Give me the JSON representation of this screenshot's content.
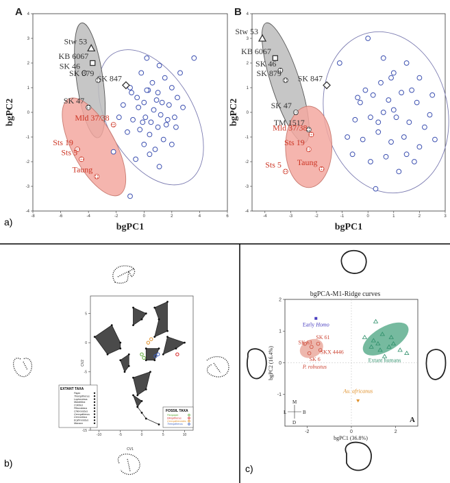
{
  "panel_labels": {
    "a": "a)",
    "b": "b)",
    "c": "c)"
  },
  "chart_data": [
    {
      "type": "scatter",
      "panel_letter": "A",
      "xlabel": "bgPC1",
      "ylabel": "bgPC2",
      "xlim": [
        -8,
        6
      ],
      "ylim": [
        -4,
        4
      ],
      "xticks": [
        "-8",
        "-6",
        "-4",
        "-2",
        "0",
        "2",
        "4",
        "6"
      ],
      "yticks": [
        "-4",
        "-3",
        "-2",
        "-1",
        "0",
        "1",
        "2",
        "3",
        "4"
      ],
      "labeled_points": [
        {
          "label": "Stw 53",
          "marker": "triangle",
          "x": -3.8,
          "y": 2.6,
          "color": "#333333"
        },
        {
          "label": "KB 6067",
          "marker": "square",
          "x": -3.7,
          "y": 2.0,
          "color": "#333333"
        },
        {
          "label": "SK 847",
          "marker": "diamond",
          "x": -1.3,
          "y": 1.1,
          "color": "#333333"
        },
        {
          "label": "SK 46",
          "marker": "gray-circle",
          "x": -4.3,
          "y": 1.6,
          "color": "#333333"
        },
        {
          "label": "SK 879",
          "marker": "gray-circle",
          "x": -3.3,
          "y": 1.3,
          "color": "#333333"
        },
        {
          "label": "SK 47",
          "marker": "gray-circle",
          "x": -4.0,
          "y": 0.2,
          "color": "#333333"
        },
        {
          "label": "Mld 37/38",
          "marker": "red-circle",
          "x": -2.2,
          "y": -0.5,
          "color": "#cc3322"
        },
        {
          "label": "Sts 19",
          "marker": "red-circle",
          "x": -4.8,
          "y": -1.5,
          "color": "#cc3322"
        },
        {
          "label": "Sts 5",
          "marker": "red-circle",
          "x": -4.5,
          "y": -1.9,
          "color": "#cc3322"
        },
        {
          "label": "Taung",
          "marker": "red-circle",
          "x": -3.4,
          "y": -2.6,
          "color": "#cc3322"
        }
      ],
      "human_points": [
        [
          -1.0,
          1.0
        ],
        [
          -0.5,
          0.6
        ],
        [
          0,
          0.4
        ],
        [
          0.3,
          0.9
        ],
        [
          0.6,
          1.2
        ],
        [
          1.0,
          0.8
        ],
        [
          1.5,
          1.4
        ],
        [
          2.0,
          1.0
        ],
        [
          0.2,
          2.2
        ],
        [
          1.1,
          1.9
        ],
        [
          -0.8,
          -0.3
        ],
        [
          0.1,
          -0.2
        ],
        [
          0.7,
          0.1
        ],
        [
          1.2,
          -0.1
        ],
        [
          1.8,
          0.3
        ],
        [
          2.4,
          0.6
        ],
        [
          -1.5,
          0.3
        ],
        [
          -0.3,
          -0.7
        ],
        [
          0.4,
          -0.9
        ],
        [
          1.0,
          -0.6
        ],
        [
          1.6,
          -0.5
        ],
        [
          2.2,
          -0.2
        ],
        [
          2.8,
          0.2
        ],
        [
          -1.8,
          -0.2
        ],
        [
          -1.2,
          -0.8
        ],
        [
          0.0,
          -1.3
        ],
        [
          0.8,
          -1.5
        ],
        [
          1.4,
          -1.1
        ],
        [
          2.0,
          -1.3
        ],
        [
          -2.2,
          -1.6
        ],
        [
          -0.6,
          -1.9
        ],
        [
          0.4,
          -1.7
        ],
        [
          1.1,
          -2.2
        ],
        [
          -1.0,
          -3.4
        ],
        [
          3.6,
          2.2
        ],
        [
          2.6,
          1.6
        ],
        [
          -0.2,
          1.6
        ],
        [
          0.9,
          0.5
        ],
        [
          1.7,
          -0.3
        ],
        [
          -0.4,
          0.2
        ],
        [
          0.5,
          -0.4
        ],
        [
          1.3,
          0.4
        ],
        [
          0.2,
          0.9
        ],
        [
          -0.9,
          0.8
        ],
        [
          2.3,
          -0.6
        ],
        [
          -0.1,
          -0.4
        ]
      ]
    },
    {
      "type": "scatter",
      "panel_letter": "B",
      "xlabel": "bgPC1",
      "ylabel": "bgPC2",
      "xlim": [
        -4.5,
        3
      ],
      "ylim": [
        -4,
        4
      ],
      "xticks": [
        "-4",
        "-3",
        "-2",
        "-1",
        "0",
        "1",
        "2",
        "3"
      ],
      "yticks": [
        "-4",
        "-3",
        "-2",
        "-1",
        "0",
        "1",
        "2",
        "3",
        "4"
      ],
      "labeled_points": [
        {
          "label": "Stw 53",
          "marker": "triangle",
          "x": -4.1,
          "y": 3.0,
          "color": "#333333"
        },
        {
          "label": "KB 6067",
          "marker": "square",
          "x": -3.6,
          "y": 2.2,
          "color": "#333333"
        },
        {
          "label": "SK 847",
          "marker": "diamond",
          "x": -1.6,
          "y": 1.1,
          "color": "#333333"
        },
        {
          "label": "SK 46",
          "marker": "gray-circle",
          "x": -3.4,
          "y": 1.7,
          "color": "#333333"
        },
        {
          "label": "SK 879",
          "marker": "gray-circle",
          "x": -3.2,
          "y": 1.3,
          "color": "#333333"
        },
        {
          "label": "SK 47",
          "marker": "gray-circle",
          "x": -2.8,
          "y": 0.0,
          "color": "#333333"
        },
        {
          "label": "TM 1517",
          "marker": "gray-circle",
          "x": -2.3,
          "y": -0.7,
          "color": "#333333"
        },
        {
          "label": "Mld 37/38",
          "marker": "red-circle",
          "x": -2.2,
          "y": -0.9,
          "color": "#cc3322"
        },
        {
          "label": "Sts 19",
          "marker": "red-circle",
          "x": -2.3,
          "y": -1.5,
          "color": "#cc3322"
        },
        {
          "label": "Sts 5",
          "marker": "red-circle",
          "x": -3.2,
          "y": -2.4,
          "color": "#cc3322"
        },
        {
          "label": "Taung",
          "marker": "red-circle",
          "x": -1.8,
          "y": -2.3,
          "color": "#cc3322"
        }
      ],
      "human_points": [
        [
          -1.1,
          2.0
        ],
        [
          0.5,
          1.2
        ],
        [
          0.0,
          3.0
        ],
        [
          0.6,
          2.2
        ],
        [
          1.0,
          1.6
        ],
        [
          1.5,
          2.0
        ],
        [
          2.0,
          1.4
        ],
        [
          -0.3,
          0.4
        ],
        [
          0.2,
          0.7
        ],
        [
          0.8,
          0.5
        ],
        [
          1.3,
          0.8
        ],
        [
          1.9,
          0.4
        ],
        [
          2.5,
          0.7
        ],
        [
          -0.5,
          -0.3
        ],
        [
          0.1,
          -0.2
        ],
        [
          0.6,
          0.0
        ],
        [
          1.1,
          -0.2
        ],
        [
          1.6,
          -0.4
        ],
        [
          2.2,
          -0.6
        ],
        [
          -0.8,
          -1.0
        ],
        [
          -0.2,
          -1.1
        ],
        [
          0.4,
          -0.8
        ],
        [
          0.9,
          -1.2
        ],
        [
          1.4,
          -1.0
        ],
        [
          2.0,
          -1.4
        ],
        [
          2.6,
          -1.1
        ],
        [
          -0.6,
          -1.7
        ],
        [
          0.1,
          -2.0
        ],
        [
          0.7,
          -1.8
        ],
        [
          1.2,
          -2.4
        ],
        [
          1.8,
          -2.0
        ],
        [
          0.3,
          -3.1
        ],
        [
          2.4,
          -0.1
        ],
        [
          -0.1,
          0.9
        ],
        [
          1.0,
          0.1
        ],
        [
          0.4,
          -0.4
        ],
        [
          1.7,
          0.9
        ],
        [
          -0.4,
          0.6
        ],
        [
          0.9,
          1.4
        ],
        [
          1.5,
          -1.7
        ]
      ]
    },
    {
      "type": "scatter",
      "subtype": "convex-hulls",
      "xlabel": "CV1",
      "ylabel": "CV2",
      "xlim": [
        -12,
        12
      ],
      "ylim": [
        -15,
        8
      ],
      "xticks": [
        "-10",
        "-5",
        "0",
        "5",
        "10"
      ],
      "yticks": [
        "5",
        "0",
        "-5",
        "-10",
        "-15"
      ],
      "legend_extant_title": "EXTANT TAXA",
      "legend_fossil_title": "FOSSIL TAXA",
      "extant_taxa": [
        "Papio",
        "Theropithecus",
        "Lophocebus",
        "Mandrillus",
        "Colobus",
        "Piliocolobus",
        "Chlorocebus",
        "Cercopithecus",
        "Cercocebus",
        "Erythrocebus",
        "Macaca"
      ],
      "fossil_taxa": [
        {
          "name": "Parapapio",
          "color": "#5aa832"
        },
        {
          "name": "Dinopithecus",
          "color": "#d62020"
        },
        {
          "name": "Cercopithecoides",
          "color": "#e0902a"
        },
        {
          "name": "Theropithecus",
          "color": "#3a5fc0"
        }
      ],
      "hulls": [
        [
          [
            -11,
            1
          ],
          [
            -7,
            3
          ],
          [
            -5,
            0
          ],
          [
            -5,
            -1
          ],
          [
            -8,
            -2
          ]
        ],
        [
          [
            -2,
            6
          ],
          [
            1,
            5
          ],
          [
            0,
            4
          ],
          [
            -2,
            3
          ]
        ],
        [
          [
            3,
            6
          ],
          [
            6,
            7
          ],
          [
            6,
            2
          ],
          [
            3,
            1
          ],
          [
            4,
            4
          ]
        ],
        [
          [
            6,
            1
          ],
          [
            10,
            0
          ],
          [
            8,
            -1
          ],
          [
            5,
            -2
          ]
        ],
        [
          [
            -5,
            -3
          ],
          [
            -3,
            -2
          ],
          [
            -3,
            -4
          ],
          [
            -4,
            -5
          ]
        ],
        [
          [
            -2,
            -6
          ],
          [
            2,
            -5
          ],
          [
            1,
            -8
          ],
          [
            -1,
            -9
          ]
        ],
        [
          [
            -2,
            -9
          ],
          [
            0,
            -10
          ],
          [
            -1,
            -11
          ]
        ],
        [
          [
            1,
            -1
          ],
          [
            4,
            -1
          ],
          [
            3,
            -3
          ],
          [
            1,
            -3
          ]
        ]
      ],
      "chain_points": [
        [
          -1,
          -11
        ],
        [
          0,
          -12
        ],
        [
          1,
          -13
        ],
        [
          4,
          -14
        ]
      ],
      "fossil_points": [
        {
          "taxon": "Parapapio",
          "x": 0.0,
          "y": -2.0
        },
        {
          "taxon": "Parapapio",
          "x": 0.5,
          "y": -2.6
        },
        {
          "taxon": "Dinopithecus",
          "x": 8.3,
          "y": -2.0
        },
        {
          "taxon": "Cercopithecoides",
          "x": 1.5,
          "y": 0.0
        },
        {
          "taxon": "Cercopithecoides",
          "x": 2.2,
          "y": 0.6
        },
        {
          "taxon": "Theropithecus",
          "x": 3.2,
          "y": -2.3
        },
        {
          "taxon": "Theropithecus",
          "x": 3.8,
          "y": -2.0
        }
      ]
    },
    {
      "type": "scatter",
      "panel_letter": "A",
      "title": "bgPCA-M1-Ridge curves",
      "xlabel": "bgPC1 (36.8%)",
      "ylabel": "bgPC2 (16.4%)",
      "xlim": [
        -3,
        3
      ],
      "ylim": [
        -2,
        2
      ],
      "xticks": [
        "-2",
        "0",
        "2"
      ],
      "yticks": [
        "2",
        "1",
        "0",
        "-1"
      ],
      "orientation_letters": {
        "m": "M",
        "l": "L",
        "b": "B",
        "d": "D"
      },
      "groups": [
        {
          "label": "Early Homo",
          "label_parts": [
            "Early ",
            "Homo"
          ],
          "color": "#4a3fc0",
          "points": [
            [
              -1.6,
              1.4
            ]
          ]
        },
        {
          "label": "P. robustus",
          "color": "#cc4433",
          "points": [
            [
              -2.1,
              0.6
            ],
            [
              -1.8,
              0.5
            ],
            [
              -1.5,
              0.6
            ],
            [
              -1.9,
              0.3
            ],
            [
              -1.4,
              0.4
            ]
          ]
        },
        {
          "label": "Extant humans",
          "color": "#2e8f6a",
          "points": [
            [
              1.1,
              1.3
            ],
            [
              0.6,
              0.8
            ],
            [
              1.0,
              0.7
            ],
            [
              1.4,
              0.9
            ],
            [
              1.8,
              0.8
            ],
            [
              0.9,
              0.5
            ],
            [
              1.3,
              0.4
            ],
            [
              1.7,
              0.5
            ],
            [
              2.2,
              0.4
            ],
            [
              2.5,
              0.3
            ],
            [
              1.5,
              0.2
            ],
            [
              1.2,
              0.6
            ],
            [
              1.9,
              0.6
            ]
          ]
        },
        {
          "label": "Au. africanus",
          "label_parts": [
            "Au. africanus"
          ],
          "color": "#e0902a",
          "points": [
            [
              0.3,
              -1.2
            ]
          ]
        }
      ],
      "specimen_labels": [
        {
          "label": "SK 61",
          "x": -1.6,
          "y": 0.75
        },
        {
          "label": "SK 63",
          "x": -2.4,
          "y": 0.58
        },
        {
          "label": "SKX 4446",
          "x": -1.4,
          "y": 0.28
        },
        {
          "label": "SK 6",
          "x": -1.9,
          "y": 0.05
        }
      ]
    }
  ]
}
